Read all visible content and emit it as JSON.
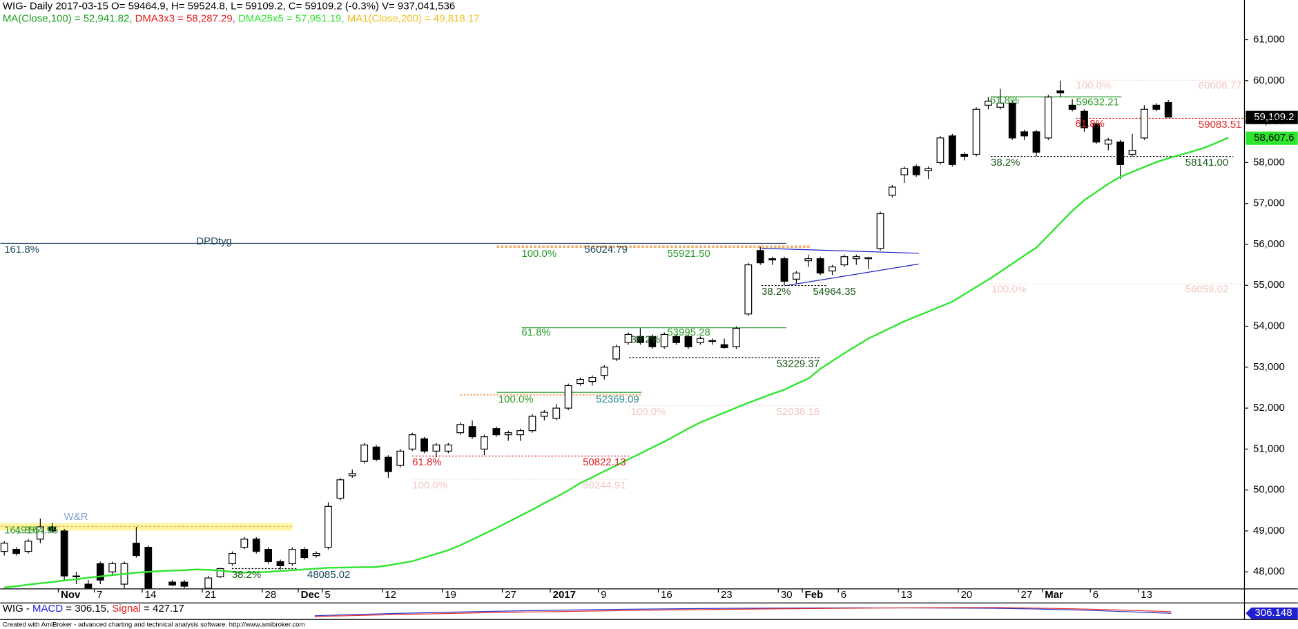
{
  "chart_data": {
    "type": "candlestick",
    "title": "WIG- Daily 2017-03-15 O= 59464.9, H= 59524.8, L= 59109.2, C= 59109.2 (-0.3%) V= 937,041,536",
    "indicators": [
      "MA(Close,100) = 52,941.82, ",
      "DMA3x3 = 58,287.29, ",
      "DMA25x5 = 57,951.19, ",
      "MA1(Close,200) = 49,818.17"
    ],
    "categories": [
      null,
      null,
      null,
      null,
      null,
      "Nov",
      null,
      null,
      "7",
      null,
      null,
      null,
      "14",
      null,
      null,
      null,
      null,
      "21",
      null,
      null,
      null,
      null,
      "28",
      null,
      null,
      "Dec",
      null,
      "5",
      null,
      null,
      null,
      null,
      "12",
      null,
      null,
      null,
      null,
      "19",
      null,
      null,
      null,
      null,
      "27",
      null,
      null,
      null,
      "2017",
      null,
      null,
      null,
      "9",
      null,
      null,
      null,
      null,
      "16",
      null,
      null,
      null,
      null,
      "23",
      null,
      null,
      null,
      null,
      "30",
      null,
      "Feb",
      null,
      null,
      "6",
      null,
      null,
      null,
      null,
      "13",
      null,
      null,
      null,
      null,
      "20",
      null,
      null,
      null,
      null,
      "27",
      null,
      "Mar",
      null,
      null,
      null,
      "6",
      null,
      null,
      null,
      "13",
      null,
      null,
      null,
      null,
      null,
      null,
      null
    ],
    "open": [
      48500,
      48550,
      48500,
      48800,
      49100,
      49000,
      47900,
      47700,
      48200,
      48000,
      47700,
      48700,
      48600,
      47500,
      47750,
      47750,
      47500,
      47600,
      47880,
      48200,
      48600,
      48800,
      48550,
      48250,
      48200,
      48550,
      48400,
      48600,
      49800,
      50350,
      50700,
      51050,
      50800,
      50600,
      51000,
      51250,
      50950,
      50950,
      51400,
      51550,
      51000,
      51500,
      51350,
      51350,
      51450,
      51800,
      51750,
      52000,
      52600,
      52650,
      52800,
      53200,
      53600,
      53750,
      53750,
      53500,
      53750,
      53750,
      53600,
      53650,
      53550,
      53500,
      54300,
      55850,
      55650,
      55650,
      55150,
      55600,
      55650,
      55350,
      55500,
      55650,
      55650,
      55900,
      57200,
      57700,
      57900,
      57800,
      58000,
      58650,
      58200,
      58200,
      59400,
      59350,
      59450,
      58750,
      58750,
      58600,
      59750,
      59400,
      59250,
      58950,
      58450,
      58500,
      58200,
      58600,
      59400,
      59464.9,
      null,
      null,
      null,
      null,
      null
    ],
    "high": [
      48750,
      48600,
      48800,
      49300,
      49200,
      49050,
      48000,
      47800,
      48250,
      48250,
      48250,
      49100,
      48650,
      47600,
      47800,
      47800,
      47600,
      47900,
      48100,
      48500,
      48850,
      48850,
      48600,
      48300,
      48600,
      48600,
      48500,
      49700,
      50300,
      50500,
      51150,
      51100,
      50850,
      51000,
      51400,
      51300,
      51150,
      51150,
      51650,
      51700,
      51350,
      51550,
      51450,
      51500,
      51850,
      51950,
      52100,
      52600,
      52750,
      52800,
      53050,
      53550,
      53850,
      53950,
      53800,
      53850,
      53800,
      53800,
      53750,
      53700,
      53700,
      54000,
      55550,
      55950,
      55700,
      55700,
      55350,
      55750,
      55700,
      55500,
      55750,
      55750,
      55700,
      56800,
      57450,
      57900,
      57950,
      57900,
      58650,
      58700,
      58250,
      59350,
      59600,
      59800,
      59500,
      58800,
      58800,
      59650,
      60000,
      59550,
      59300,
      59000,
      58600,
      58550,
      58700,
      59400,
      59450,
      59524.8,
      null,
      null,
      null,
      null,
      null
    ],
    "low": [
      48400,
      48400,
      48450,
      48700,
      48950,
      47800,
      47700,
      47500,
      47700,
      47900,
      47600,
      48350,
      47400,
      47300,
      47650,
      47600,
      47400,
      47550,
      47850,
      48150,
      48550,
      48450,
      48200,
      48050,
      48150,
      48300,
      48350,
      48550,
      49750,
      50300,
      50650,
      50700,
      50300,
      50550,
      50950,
      50900,
      50800,
      50900,
      51350,
      51250,
      50850,
      51300,
      51200,
      51200,
      51400,
      51700,
      51700,
      51950,
      52550,
      52550,
      52700,
      53150,
      53550,
      53550,
      53450,
      53450,
      53550,
      53450,
      53550,
      53550,
      53450,
      53450,
      54250,
      55500,
      55500,
      55000,
      55050,
      55450,
      55250,
      55250,
      55450,
      55500,
      55400,
      55850,
      57150,
      57500,
      57650,
      57600,
      57950,
      57900,
      58050,
      58150,
      59300,
      59300,
      58550,
      58550,
      58150,
      58550,
      59600,
      59250,
      58750,
      58450,
      58300,
      57600,
      58150,
      58550,
      59250,
      59109.2,
      null,
      null,
      null,
      null,
      null
    ],
    "close": [
      48700,
      48450,
      48750,
      49100,
      49000,
      47900,
      47880,
      47550,
      47800,
      48200,
      48200,
      48400,
      47500,
      47400,
      47680,
      47650,
      47550,
      47850,
      48080,
      48450,
      48800,
      48500,
      48250,
      48150,
      48550,
      48350,
      48450,
      49600,
      50250,
      50400,
      51100,
      50750,
      50450,
      50950,
      51350,
      50950,
      51100,
      51100,
      51600,
      51300,
      51300,
      51350,
      51400,
      51450,
      51800,
      51900,
      52000,
      52550,
      52700,
      52750,
      53000,
      53500,
      53800,
      53600,
      53500,
      53800,
      53600,
      53500,
      53700,
      53650,
      53480,
      53950,
      55500,
      55550,
      55620,
      55100,
      55300,
      55650,
      55300,
      55450,
      55700,
      55700,
      55680,
      56750,
      57400,
      57850,
      57700,
      57850,
      58600,
      57950,
      58150,
      59300,
      59500,
      59450,
      58600,
      58650,
      58250,
      59600,
      59700,
      59300,
      58850,
      58500,
      58550,
      57950,
      58300,
      59300,
      59300,
      59109.2,
      null,
      null,
      null,
      null,
      null
    ],
    "series": [
      {
        "name": "DMA25x5",
        "color": "#2ee52e",
        "values": [
          47620,
          47650,
          47690,
          47720,
          47750,
          47790,
          47820,
          47860,
          47890,
          47920,
          47950,
          47980,
          48000,
          48020,
          48030,
          48040,
          48060,
          48050,
          48030,
          48000,
          47980,
          47990,
          48000,
          48020,
          48040,
          48060,
          48080,
          48100,
          48105,
          48110,
          48115,
          48120,
          48160,
          48210,
          48260,
          48350,
          48440,
          48530,
          48650,
          48790,
          48930,
          49070,
          49220,
          49370,
          49520,
          49680,
          49830,
          49990,
          50170,
          50310,
          50460,
          50600,
          50750,
          50890,
          51040,
          51180,
          51340,
          51500,
          51650,
          51770,
          51890,
          52010,
          52130,
          52240,
          52350,
          52450,
          52590,
          52720,
          52960,
          53150,
          53340,
          53520,
          53700,
          53840,
          53980,
          54120,
          54240,
          54360,
          54480,
          54600,
          54780,
          54960,
          55140,
          55330,
          55530,
          55730,
          55920,
          56220,
          56520,
          56820,
          57080,
          57280,
          57480,
          57650,
          57770,
          57890,
          58010,
          58100,
          58190,
          58270,
          58360,
          58480,
          58607.6
        ]
      }
    ],
    "up_color": "#ffffff",
    "down_color": "#000000",
    "ylim": [
      47595,
      61970
    ],
    "yticks": [
      {
        "value": 48000,
        "label": "48,000"
      },
      {
        "value": 49000,
        "label": "49,000"
      },
      {
        "value": 50000,
        "label": "50,000"
      },
      {
        "value": 51000,
        "label": "51,000"
      },
      {
        "value": 52000,
        "label": "52,000"
      },
      {
        "value": 53000,
        "label": "53,000"
      },
      {
        "value": 54000,
        "label": "54,000"
      },
      {
        "value": 55000,
        "label": "55,000"
      },
      {
        "value": 56000,
        "label": "56,000"
      },
      {
        "value": 57000,
        "label": "57,000"
      },
      {
        "value": 58000,
        "label": "58,000"
      },
      {
        "value": 59000,
        "label": "59,000"
      },
      {
        "value": 60000,
        "label": "60,000"
      },
      {
        "value": 61000,
        "label": "61,000"
      }
    ],
    "price_box": "59,109.2",
    "ma_box": "58,607.6",
    "annotations": [
      "161.8%",
      "DPDtyg",
      "100.0%",
      "56024.79",
      "55921.50",
      "38.2%",
      "54964.35",
      "61.8%",
      "53995.28",
      "38.2%",
      "53229.37",
      "100.0%",
      "52369.09",
      "100.0%",
      "52038.16",
      "61.8%",
      "50822.13",
      "100.0%",
      "50244.91",
      "W&R",
      "161.8%",
      "49164.95",
      "38.2%",
      "48085.02",
      "61.8%",
      "59632.21",
      "100.0%",
      "60006.77",
      "61.8%",
      "59083.51",
      "38.2%",
      "58141.00",
      "100.0%",
      "56059.02"
    ],
    "macd": {
      "parts": [
        "WIG - ",
        "MACD",
        " = 306.15, ",
        "Signal",
        " = 427.17"
      ],
      "box": "306.148"
    },
    "footer": "Created with AmiBroker - advanced charting and technical analysis software. http://www.amibroker.com"
  }
}
